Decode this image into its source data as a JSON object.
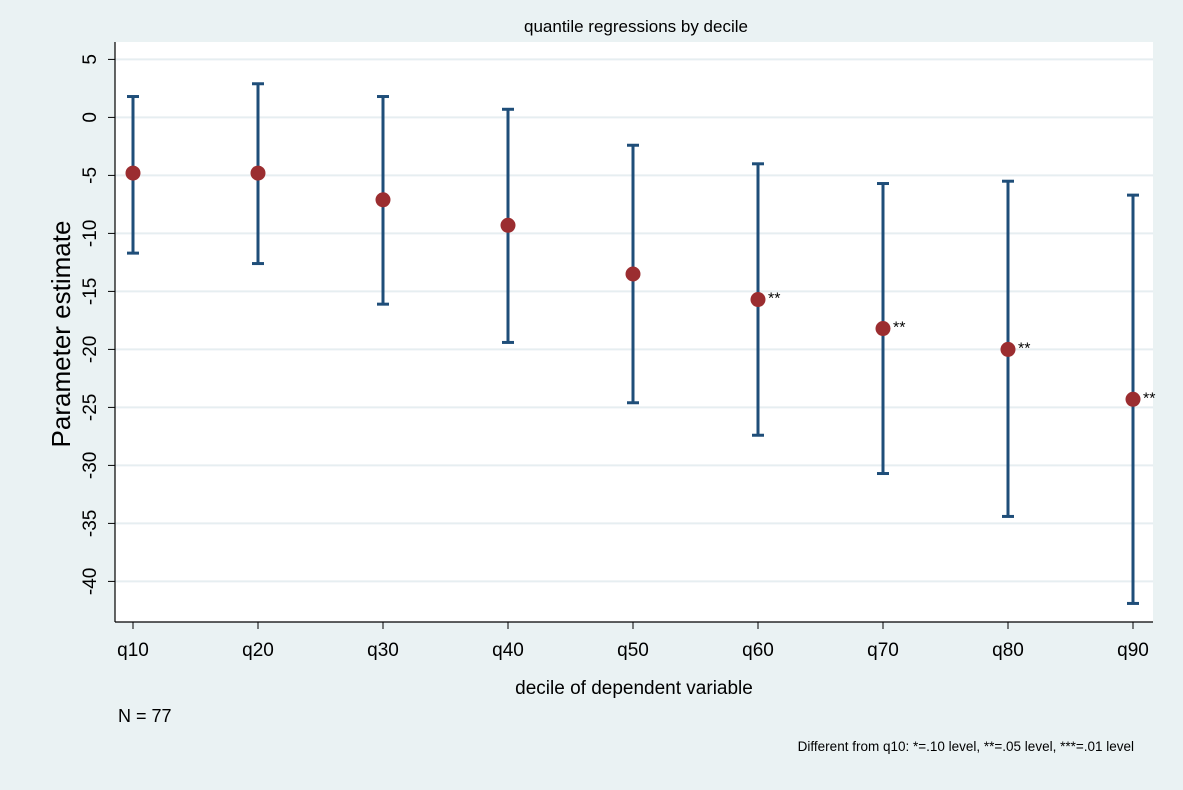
{
  "chart_data": {
    "type": "scatter",
    "title": "quantile regressions by decile",
    "xlabel": "decile of dependent variable",
    "ylabel": "Parameter estimate",
    "categories": [
      "q10",
      "q20",
      "q30",
      "q40",
      "q50",
      "q60",
      "q70",
      "q80",
      "q90"
    ],
    "estimates": [
      -4.8,
      -4.8,
      -7.1,
      -9.3,
      -13.5,
      -15.7,
      -18.2,
      -20.0,
      -24.3
    ],
    "ci_upper": [
      1.8,
      2.9,
      1.8,
      0.7,
      -2.4,
      -4.0,
      -5.7,
      -5.5,
      -6.7
    ],
    "ci_lower": [
      -11.7,
      -12.6,
      -16.1,
      -19.4,
      -24.6,
      -27.4,
      -30.7,
      -34.4,
      -41.9
    ],
    "significance": [
      "",
      "",
      "",
      "",
      "",
      "**",
      "**",
      "**",
      "**"
    ],
    "yticks": [
      5,
      0,
      -5,
      -10,
      -15,
      -20,
      -25,
      -30,
      -35,
      -40
    ],
    "ylim": [
      -43.5,
      6.5
    ],
    "grid": true,
    "note_n": "N = 77",
    "note_significance": "Different from q10:  *=.10 level, **=.05 level, ***=.01 level",
    "colors": {
      "background": "#eaf2f3",
      "plot_area": "#ffffff",
      "gridline": "#e6eef1",
      "errorbar": "#1f4e79",
      "point": "#9b2d30",
      "axis": "#000000"
    }
  }
}
